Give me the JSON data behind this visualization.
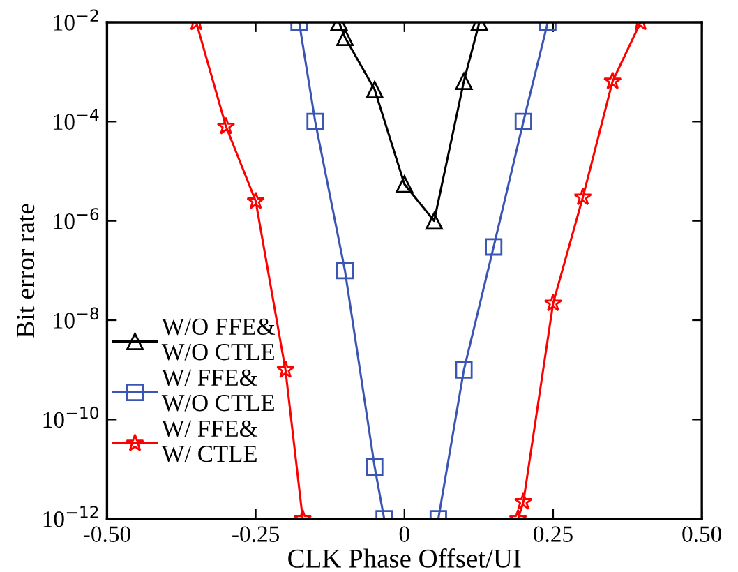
{
  "chart_data": {
    "type": "line",
    "xlabel": "CLK Phase Offset/UI",
    "ylabel": "Bit error rate",
    "log": "y",
    "xlim": [
      -0.5,
      0.5
    ],
    "xticks": [
      {
        "value": -0.5,
        "label": "-0.50"
      },
      {
        "value": -0.25,
        "label": "-0.25"
      },
      0,
      0.25,
      {
        "value": 0.5,
        "label": "0.50"
      }
    ],
    "ylim": [
      1e-12,
      0.01
    ],
    "yticks": [
      {
        "value": 1e-12,
        "label": "10$^{−12}$"
      },
      {
        "value": 1e-10,
        "label": "10$^{−10}$"
      },
      {
        "value": 1e-08,
        "label": "10$^{−8}$"
      },
      {
        "value": 1e-06,
        "label": "10$^{−6}$"
      },
      {
        "value": 0.0001,
        "label": "10$^{−4}$"
      },
      {
        "value": 0.01,
        "label": "10$^{−2}$"
      }
    ],
    "grid": false,
    "legend": "bottom left",
    "line_style": "solid",
    "series": [
      {
        "name": "W/O FFE&\nW/O CTLE",
        "color": "#000000",
        "marker": "triangle",
        "x": [
          -0.11,
          -0.1,
          -0.05,
          0,
          0.05,
          0.1,
          0.126
        ],
        "values": [
          0.01,
          0.005,
          0.00044,
          5.5e-06,
          1e-06,
          0.00065,
          0.01
        ]
      },
      {
        "name": "W/ FFE&\nW/O CTLE",
        "color": "#3a55b4",
        "marker": "square",
        "x": [
          -0.177,
          -0.15,
          -0.1,
          -0.05,
          -0.034,
          0.057,
          0.1,
          0.15,
          0.2,
          0.241
        ],
        "values": [
          0.01,
          0.0001,
          1e-07,
          1.1e-11,
          1e-12,
          1e-12,
          1e-09,
          3e-07,
          0.0001,
          0.01
        ]
      },
      {
        "name": "W/ FFE&\nW/ CTLE",
        "color": "#ff0000",
        "marker": "star",
        "x": [
          -0.35,
          -0.3,
          -0.25,
          -0.2,
          -0.171,
          0.191,
          0.2,
          0.25,
          0.3,
          0.35,
          0.397
        ],
        "values": [
          0.01,
          8e-05,
          2.5e-06,
          1e-09,
          1e-12,
          1e-12,
          2.2e-12,
          2.2e-08,
          3e-06,
          0.00065,
          0.01
        ]
      }
    ]
  }
}
